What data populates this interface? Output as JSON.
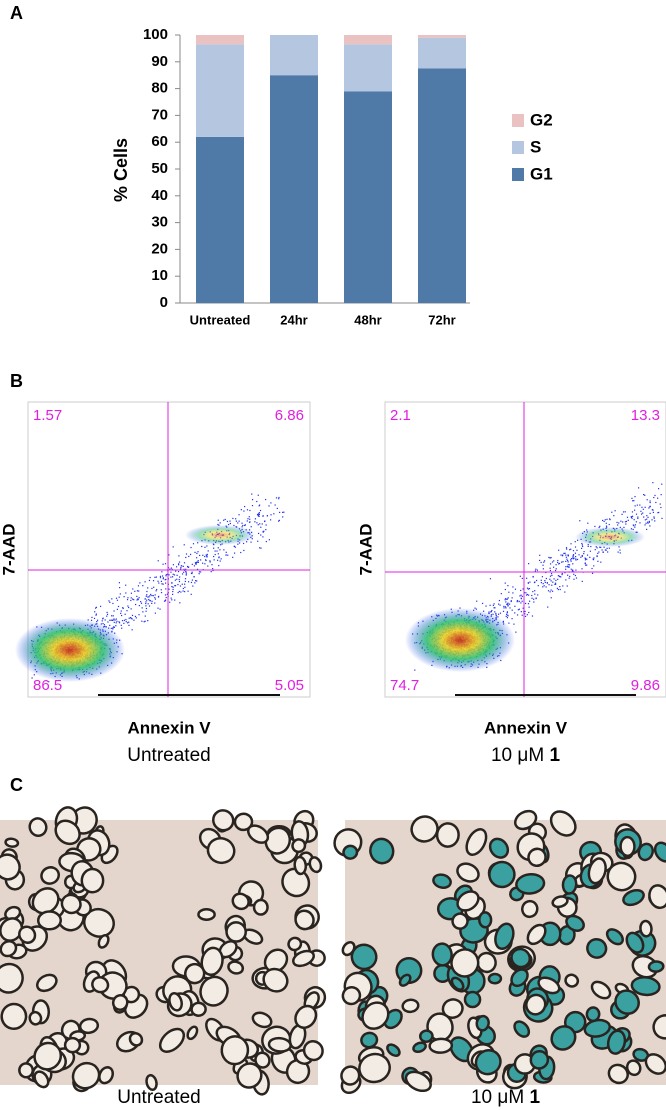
{
  "panel_labels": [
    "A",
    "B",
    "C"
  ],
  "chart_data": {
    "type": "bar",
    "stacked": true,
    "ylabel": "% Cells",
    "categories": [
      "Untreated",
      "24hr",
      "48hr",
      "72hr"
    ],
    "series": [
      {
        "name": "G1",
        "color": "#4f79a7",
        "values": [
          62,
          85,
          79,
          87.5
        ]
      },
      {
        "name": "S",
        "color": "#b5c6e0",
        "values": [
          34.5,
          15,
          17.5,
          11.5
        ]
      },
      {
        "name": "G2",
        "color": "#eac2c2",
        "values": [
          3.5,
          0,
          3.5,
          1
        ]
      }
    ],
    "ylim": [
      0,
      100
    ],
    "yticks": [
      0,
      10,
      20,
      30,
      40,
      50,
      60,
      70,
      80,
      90,
      100
    ],
    "legend": "right"
  },
  "flow_plots": [
    {
      "x_label": "Annexin V",
      "y_label": "7-AAD",
      "caption": "Untreated",
      "quadrants": [
        1.57,
        6.86,
        86.5,
        5.05
      ]
    },
    {
      "x_label": "Annexin V",
      "y_label": "7-AAD",
      "caption": "10 μM ",
      "caption_emphasis": "1",
      "quadrants": [
        2.1,
        13.3,
        74.7,
        9.86
      ]
    }
  ],
  "micrographs": [
    {
      "caption": "Untreated"
    },
    {
      "caption": "10 μM ",
      "caption_emphasis": "1"
    }
  ]
}
